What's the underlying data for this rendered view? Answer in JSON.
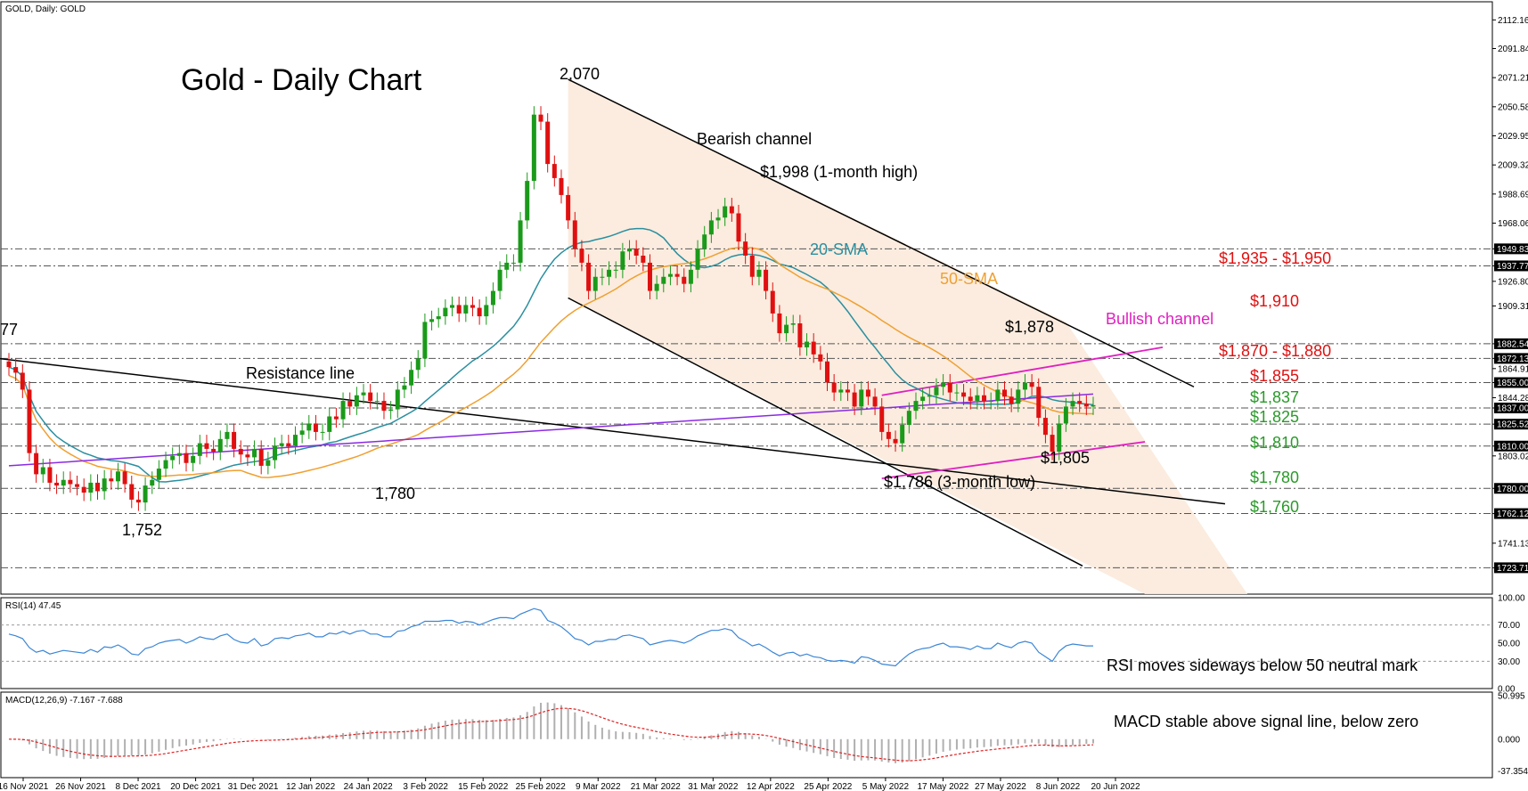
{
  "header": {
    "symbol_label": "GOLD, Daily:  GOLD"
  },
  "title": "Gold - Daily Chart",
  "colors": {
    "candle_up": "#1a9a1a",
    "candle_down": "#e01010",
    "sma20": "#2a8fa0",
    "sma50": "#f0a030",
    "sma200": "#8a2be2",
    "bullish_channel": "#e020c0",
    "channel_fill": "#fbeadb",
    "rsi_line": "#3b86d6",
    "macd_signal": "#e02020",
    "macd_hist": "#b0b0b0",
    "resistance_red": "#e01010",
    "support_green": "#2a9a2a"
  },
  "chart_data": [
    {
      "type": "candlestick",
      "name": "GOLD, Daily",
      "ylim": [
        1705,
        2125
      ],
      "y_ticks": [
        "2112.16",
        "2091.84",
        "2071.21",
        "2050.58",
        "2029.95",
        "2009.32",
        "1988.69",
        "1968.06",
        "1949.83",
        "1937.77",
        "1926.80",
        "1909.31",
        "1882.54",
        "1872.13",
        "1864.91",
        "1855.00",
        "1844.28",
        "1837.00",
        "1825.52",
        "1810.00",
        "1803.02",
        "1780.00",
        "1762.12",
        "1741.13",
        "1723.71"
      ],
      "y_tick_values": [
        2112.16,
        2091.84,
        2071.21,
        2050.58,
        2029.95,
        2009.32,
        1988.69,
        1968.06,
        1949.83,
        1937.77,
        1926.8,
        1909.31,
        1882.54,
        1872.13,
        1864.91,
        1855.0,
        1844.28,
        1837.0,
        1825.52,
        1810.0,
        1803.02,
        1780.0,
        1762.12,
        1741.13,
        1723.71
      ],
      "x_ticks": [
        "16 Nov 2021",
        "26 Nov 2021",
        "8 Dec 2021",
        "20 Dec 2021",
        "31 Dec 2021",
        "12 Jan 2022",
        "24 Jan 2022",
        "3 Feb 2022",
        "15 Feb 2022",
        "25 Feb 2022",
        "9 Mar 2022",
        "21 Mar 2022",
        "31 Mar 2022",
        "12 Apr 2022",
        "25 Apr 2022",
        "5 May 2022",
        "17 May 2022",
        "27 May 2022",
        "8 Jun 2022",
        "20 Jun 2022"
      ],
      "close": [
        1866,
        1862,
        1850,
        1805,
        1790,
        1795,
        1784,
        1782,
        1786,
        1783,
        1781,
        1777,
        1784,
        1778,
        1787,
        1785,
        1792,
        1783,
        1772,
        1770,
        1782,
        1786,
        1794,
        1800,
        1803,
        1805,
        1798,
        1803,
        1812,
        1808,
        1806,
        1815,
        1820,
        1808,
        1804,
        1802,
        1808,
        1796,
        1800,
        1810,
        1812,
        1810,
        1818,
        1821,
        1826,
        1820,
        1820,
        1831,
        1829,
        1842,
        1838,
        1846,
        1848,
        1842,
        1842,
        1835,
        1836,
        1850,
        1853,
        1864,
        1872,
        1898,
        1900,
        1902,
        1908,
        1910,
        1904,
        1910,
        1908,
        1902,
        1910,
        1920,
        1935,
        1940,
        1940,
        1970,
        1998,
        2045,
        2040,
        2010,
        2000,
        1988,
        1970,
        1950,
        1940,
        1920,
        1930,
        1930,
        1935,
        1935,
        1948,
        1950,
        1945,
        1940,
        1920,
        1925,
        1930,
        1932,
        1930,
        1925,
        1935,
        1950,
        1960,
        1970,
        1972,
        1980,
        1975,
        1955,
        1945,
        1930,
        1935,
        1920,
        1904,
        1890,
        1896,
        1897,
        1880,
        1884,
        1875,
        1870,
        1855,
        1848,
        1850,
        1848,
        1838,
        1850,
        1845,
        1838,
        1820,
        1815,
        1812,
        1825,
        1835,
        1842,
        1845,
        1846,
        1852,
        1855,
        1848,
        1848,
        1845,
        1842,
        1846,
        1842,
        1842,
        1850,
        1845,
        1840,
        1850,
        1855,
        1852,
        1830,
        1818,
        1806,
        1826,
        1838,
        1842,
        1840,
        1838,
        1839
      ],
      "annotations": {
        "peak": "2,070",
        "low_1": "1,752",
        "low_2": "1,780",
        "partial_left": "77",
        "resistance_line": "Resistance line",
        "bearish_channel": "Bearish channel",
        "bullish_channel": "Bullish channel",
        "month_high": "$1,998 (1-month high)",
        "sma20": "20-SMA",
        "sma50": "50-SMA",
        "level_1878": "$1,878",
        "level_1805": "$1,805",
        "three_month_low": "$1,786 (3-month low)"
      },
      "levels": [
        {
          "label": "$1,935 - $1,950",
          "color": "red"
        },
        {
          "label": "$1,910",
          "color": "red"
        },
        {
          "label": "$1,870 - $1,880",
          "color": "red"
        },
        {
          "label": "$1,855",
          "color": "red"
        },
        {
          "label": "$1,837",
          "color": "green"
        },
        {
          "label": "$1,825",
          "color": "green"
        },
        {
          "label": "$1,810",
          "color": "green"
        },
        {
          "label": "$1,780",
          "color": "green"
        },
        {
          "label": "$1,760",
          "color": "green"
        }
      ],
      "price_markers": [
        "1949.83",
        "1937.77",
        "1882.54",
        "1872.13",
        "1855.00",
        "1837.00",
        "1825.52",
        "1810.00",
        "1780.00",
        "1762.12",
        "1723.71"
      ]
    },
    {
      "type": "line",
      "name": "RSI(14) 47.45",
      "ylim": [
        0,
        100
      ],
      "y_ticks": [
        "100.00",
        "70.00",
        "50.00",
        "30.00",
        "0.00"
      ],
      "y_tick_values": [
        100,
        70,
        50,
        30,
        0
      ],
      "values": [
        60,
        58,
        55,
        45,
        40,
        42,
        38,
        40,
        42,
        41,
        40,
        39,
        43,
        40,
        46,
        45,
        48,
        44,
        38,
        37,
        44,
        46,
        50,
        52,
        53,
        54,
        50,
        53,
        57,
        55,
        54,
        58,
        60,
        54,
        51,
        50,
        55,
        47,
        49,
        55,
        56,
        55,
        58,
        59,
        61,
        57,
        57,
        61,
        60,
        63,
        60,
        63,
        64,
        60,
        60,
        57,
        57,
        63,
        64,
        68,
        70,
        74,
        74,
        74,
        75,
        75,
        72,
        74,
        73,
        70,
        73,
        76,
        78,
        78,
        77,
        82,
        85,
        88,
        86,
        75,
        72,
        68,
        62,
        55,
        53,
        48,
        52,
        52,
        54,
        54,
        58,
        59,
        57,
        55,
        48,
        50,
        52,
        53,
        52,
        50,
        53,
        58,
        61,
        64,
        64,
        66,
        64,
        56,
        52,
        47,
        49,
        45,
        40,
        36,
        39,
        40,
        36,
        38,
        35,
        34,
        31,
        30,
        31,
        30,
        28,
        35,
        34,
        31,
        27,
        26,
        25,
        32,
        38,
        42,
        44,
        45,
        48,
        50,
        46,
        46,
        45,
        43,
        47,
        44,
        44,
        50,
        47,
        45,
        50,
        52,
        50,
        40,
        35,
        30,
        41,
        47,
        49,
        48,
        47,
        47
      ],
      "annotation": "RSI moves sideways below 50 neutral mark"
    },
    {
      "type": "bar+line",
      "name": "MACD(12,26,9) -7.167 -7.688",
      "ylim": [
        -45,
        55
      ],
      "y_ticks": [
        "50.995",
        "0.000",
        "-37.354"
      ],
      "y_tick_values": [
        50.995,
        0,
        -37.354
      ],
      "annotation": "MACD stable above signal line, below zero"
    }
  ]
}
